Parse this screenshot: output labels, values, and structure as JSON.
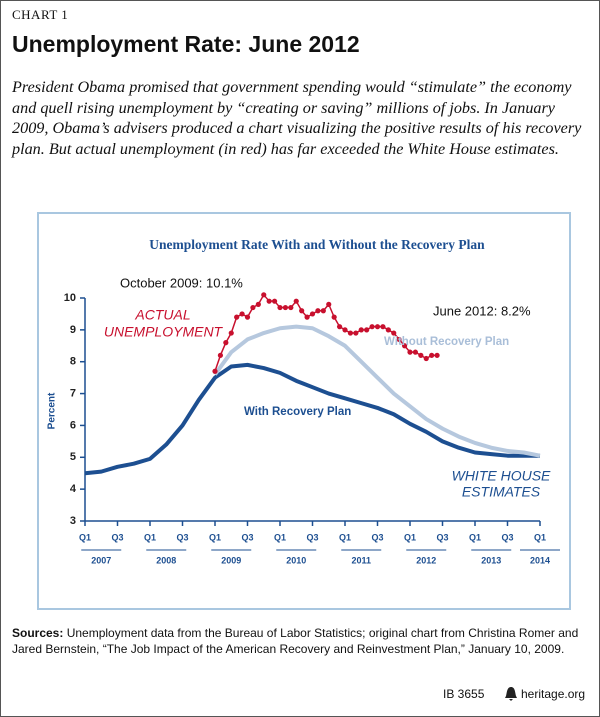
{
  "header": {
    "label": "CHART 1",
    "title": "Unemployment Rate: June 2012"
  },
  "intro": "President Obama promised that government spending would “stimulate” the economy and quell rising unemployment by “creating or saving” millions of jobs. In January 2009, Obama’s advisers produced a chart visualizing the positive results of his recovery plan. But actual unemployment (in red) has far exceeded the White House estimates.",
  "chart_data": {
    "type": "line",
    "title": "Unemployment Rate With and Without the Recovery Plan",
    "ylabel": "Percent",
    "xlim": [
      2007,
      2014
    ],
    "ylim": [
      3,
      10
    ],
    "yticks": [
      3,
      4,
      5,
      6,
      7,
      8,
      9,
      10
    ],
    "xticks": [
      {
        "value": 2007,
        "label": "Q1"
      },
      {
        "value": 2007.5,
        "label": "Q3"
      },
      {
        "value": 2008,
        "label": "Q1"
      },
      {
        "value": 2008.5,
        "label": "Q3"
      },
      {
        "value": 2009,
        "label": "Q1"
      },
      {
        "value": 2009.5,
        "label": "Q3"
      },
      {
        "value": 2010,
        "label": "Q1"
      },
      {
        "value": 2010.5,
        "label": "Q3"
      },
      {
        "value": 2011,
        "label": "Q1"
      },
      {
        "value": 2011.5,
        "label": "Q3"
      },
      {
        "value": 2012,
        "label": "Q1"
      },
      {
        "value": 2012.5,
        "label": "Q3"
      },
      {
        "value": 2013,
        "label": "Q1"
      },
      {
        "value": 2013.5,
        "label": "Q3"
      },
      {
        "value": 2014,
        "label": "Q1"
      }
    ],
    "xgroups": [
      {
        "value": 2007.25,
        "label": "2007"
      },
      {
        "value": 2008.25,
        "label": "2008"
      },
      {
        "value": 2009.25,
        "label": "2009"
      },
      {
        "value": 2010.25,
        "label": "2010"
      },
      {
        "value": 2011.25,
        "label": "2011"
      },
      {
        "value": 2012.25,
        "label": "2012"
      },
      {
        "value": 2013.25,
        "label": "2013"
      },
      {
        "value": 2014,
        "label": "2014"
      }
    ],
    "series": [
      {
        "name": "With Recovery Plan",
        "color": "#1d4f91",
        "width": 4,
        "x": [
          2007,
          2007.25,
          2007.5,
          2007.75,
          2008,
          2008.25,
          2008.5,
          2008.75,
          2009,
          2009.25,
          2009.5,
          2009.75,
          2010,
          2010.25,
          2010.5,
          2010.75,
          2011,
          2011.25,
          2011.5,
          2011.75,
          2012,
          2012.25,
          2012.5,
          2012.75,
          2013,
          2013.25,
          2013.5,
          2013.75,
          2014
        ],
        "values": [
          4.5,
          4.55,
          4.7,
          4.8,
          4.95,
          5.4,
          6.0,
          6.8,
          7.5,
          7.85,
          7.9,
          7.8,
          7.65,
          7.4,
          7.2,
          7.0,
          6.85,
          6.7,
          6.55,
          6.35,
          6.05,
          5.8,
          5.5,
          5.3,
          5.15,
          5.1,
          5.05,
          5.05,
          5.05
        ]
      },
      {
        "name": "Without Recovery Plan",
        "color": "#b6c8de",
        "width": 4,
        "x": [
          2009,
          2009.25,
          2009.5,
          2009.75,
          2010,
          2010.25,
          2010.5,
          2010.75,
          2011,
          2011.25,
          2011.5,
          2011.75,
          2012,
          2012.25,
          2012.5,
          2012.75,
          2013,
          2013.25,
          2013.5,
          2013.75,
          2014
        ],
        "values": [
          7.6,
          8.3,
          8.7,
          8.9,
          9.05,
          9.1,
          9.05,
          8.8,
          8.5,
          8.0,
          7.5,
          7.0,
          6.6,
          6.2,
          5.9,
          5.65,
          5.45,
          5.3,
          5.2,
          5.15,
          5.05
        ]
      },
      {
        "name_lines": [
          "ACTUAL",
          "UNEMPLOYMENT"
        ],
        "color": "#c8102e",
        "width": 1.5,
        "markers": true,
        "x": [
          2009,
          2009.0833,
          2009.1667,
          2009.25,
          2009.3333,
          2009.4167,
          2009.5,
          2009.5833,
          2009.6667,
          2009.75,
          2009.8333,
          2009.9167,
          2010,
          2010.0833,
          2010.1667,
          2010.25,
          2010.3333,
          2010.4167,
          2010.5,
          2010.5833,
          2010.6667,
          2010.75,
          2010.8333,
          2010.9167,
          2011,
          2011.0833,
          2011.1667,
          2011.25,
          2011.3333,
          2011.4167,
          2011.5,
          2011.5833,
          2011.6667,
          2011.75,
          2011.8333,
          2011.9167,
          2012,
          2012.0833,
          2012.1667,
          2012.25,
          2012.3333,
          2012.4167
        ],
        "values": [
          7.7,
          8.2,
          8.6,
          8.9,
          9.4,
          9.5,
          9.4,
          9.7,
          9.8,
          10.1,
          9.9,
          9.9,
          9.7,
          9.7,
          9.7,
          9.9,
          9.6,
          9.4,
          9.5,
          9.6,
          9.6,
          9.8,
          9.4,
          9.1,
          9.0,
          8.9,
          8.9,
          9.0,
          9.0,
          9.1,
          9.1,
          9.1,
          9.0,
          8.9,
          8.7,
          8.5,
          8.3,
          8.3,
          8.2,
          8.1,
          8.2,
          8.2
        ]
      }
    ],
    "annotations": [
      "October 2009: 10.1%",
      "June 2012: 8.2%",
      "WHITE HOUSE",
      "ESTIMATES"
    ]
  },
  "sources": {
    "label": "Sources:",
    "text": "Unemployment data from the Bureau of Labor Statistics; original chart from Christina Romer and Jared Bernstein, “The Job Impact of the American Recovery and Reinvestment Plan,” January 10, 2009."
  },
  "footer": {
    "id": "IB 3655",
    "site": "heritage.org"
  }
}
